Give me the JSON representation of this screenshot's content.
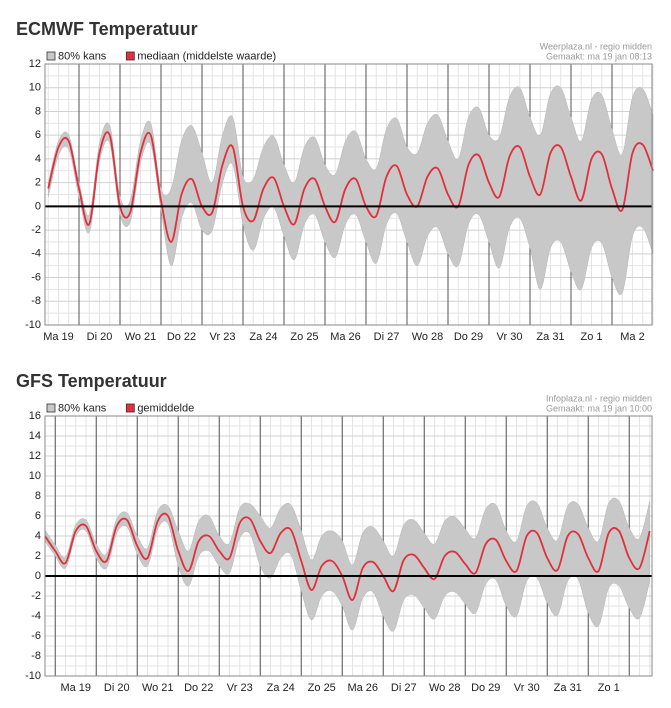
{
  "chart_data": [
    {
      "type": "line",
      "title": "ECMWF Temperatuur",
      "source": "Weerplaza.nl - regio midden",
      "created": "Gemaakt: ma 19 jan 08:13",
      "categories": [
        null,
        "Ma 19",
        null,
        null,
        null,
        "Di 20",
        null,
        null,
        null,
        "Wo 21",
        null,
        null,
        null,
        "Do 22",
        null,
        null,
        null,
        "Vr 23",
        null,
        null,
        null,
        "Za 24",
        null,
        null,
        null,
        "Zo 25",
        null,
        null,
        null,
        "Ma 26",
        null,
        null,
        null,
        "Di 27",
        null,
        null,
        null,
        "Wo 28",
        null,
        null,
        null,
        "Do 29",
        null,
        null,
        null,
        "Vr 30",
        null,
        null,
        null,
        "Za 31",
        null,
        null,
        null,
        "Zo 1",
        null,
        null,
        null,
        "Ma 2",
        null,
        null
      ],
      "series": [
        {
          "name": "80% kans",
          "color": "#c8c8c8",
          "low": [
            0.8,
            4.3,
            4.8,
            0.8,
            -2.2,
            3.8,
            5.3,
            -0.7,
            -1.3,
            3.7,
            5.2,
            -0.3,
            -5,
            -1,
            0.3,
            -2,
            -2,
            2,
            3.5,
            -1.5,
            -3.7,
            -1,
            -0.1,
            -2.5,
            -4.5,
            -1.5,
            -0.7,
            -3,
            -4.3,
            -1.5,
            -0.7,
            -3,
            -4.8,
            -1.5,
            -0.6,
            -3,
            -5,
            -2.5,
            -1.8,
            -4,
            -5,
            -1.5,
            -0.7,
            -3,
            -5.2,
            -1.8,
            -1,
            -3.5,
            -7,
            -3.5,
            -3,
            -5.5,
            -7,
            -3.5,
            -3.1,
            -6,
            -7.3,
            -2.5,
            -1.8,
            -4
          ],
          "high": [
            2.0,
            5.5,
            6.0,
            2.0,
            -0.7,
            5.3,
            6.8,
            0.8,
            0.5,
            5.5,
            7.0,
            1.5,
            1.5,
            5.5,
            6.8,
            4.5,
            2,
            6,
            7.5,
            2.5,
            2.3,
            5,
            5.9,
            3.5,
            2,
            5,
            5.8,
            3.5,
            2.7,
            5.5,
            6.3,
            4,
            3.2,
            6.5,
            7.4,
            5,
            4.5,
            7,
            7.7,
            5.5,
            4,
            7.5,
            8.3,
            6,
            5.8,
            9.2,
            10,
            7.5,
            6,
            9.5,
            10,
            7.5,
            5.5,
            9,
            9.4,
            6.5,
            4.4,
            9.2,
            9.9,
            7.7
          ]
        },
        {
          "name": "mediaan (middelste waarde)",
          "color": "#e0303c",
          "values": [
            1.5,
            5.0,
            5.5,
            1.5,
            -1.5,
            4.5,
            6.0,
            0,
            -0.5,
            4.5,
            6.0,
            0.5,
            -3,
            1.0,
            2.3,
            0,
            -0.5,
            3.5,
            5.0,
            0,
            -1.2,
            1.5,
            2.4,
            0,
            -1.5,
            1.5,
            2.3,
            0,
            -1.3,
            1.5,
            2.3,
            0,
            -0.8,
            2.5,
            3.4,
            1,
            0,
            2.5,
            3.2,
            1,
            0,
            3.5,
            4.3,
            2,
            0.8,
            4.2,
            5.0,
            2.5,
            1.0,
            4.5,
            5.0,
            2.5,
            0.5,
            4.0,
            4.4,
            1.5,
            -0.3,
            4.5,
            5.2,
            3
          ]
        }
      ],
      "ylim": [
        -10,
        12
      ],
      "yticks": [
        -10,
        -8,
        -6,
        -4,
        -2,
        0,
        2,
        4,
        6,
        8,
        10,
        12
      ],
      "grid": true
    },
    {
      "type": "line",
      "title": "GFS Temperatuur",
      "source": "Infoplaza.nl - regio midden",
      "created": "Gemaakt: ma 19 jan 10:00",
      "categories": [
        null,
        null,
        null,
        "Ma 19",
        null,
        null,
        null,
        "Di 20",
        null,
        null,
        null,
        "Wo 21",
        null,
        null,
        null,
        "Do 22",
        null,
        null,
        null,
        "Vr 23",
        null,
        null,
        null,
        "Za 24",
        null,
        null,
        null,
        "Zo 25",
        null,
        null,
        null,
        "Ma 26",
        null,
        null,
        null,
        "Di 27",
        null,
        null,
        null,
        "Wo 28",
        null,
        null,
        null,
        "Do 29",
        null,
        null,
        null,
        "Vr 30",
        null,
        null,
        null,
        "Za 31",
        null,
        null,
        null,
        "Zo 1",
        null,
        null,
        null,
        null
      ],
      "series": [
        {
          "name": "80% kans",
          "color": "#c8c8c8",
          "low": [
            3.5,
            2.0,
            0.8,
            4.0,
            4.5,
            1.8,
            0.8,
            4.3,
            4.9,
            2.2,
            1.0,
            4.7,
            5.2,
            1,
            -1,
            2,
            2.5,
            1,
            0.3,
            3.8,
            4.2,
            1,
            -0.2,
            1.8,
            2.1,
            -1.5,
            -4.4,
            -2,
            -1.5,
            -3,
            -5.4,
            -2.2,
            -1.6,
            -4,
            -5.5,
            -2.4,
            -1.9,
            -3.2,
            -4.3,
            -2,
            -1.6,
            -2.8,
            -3.7,
            -0.8,
            -0.4,
            -3,
            -4,
            -0.5,
            -0.2,
            -2.7,
            -3.9,
            -0.5,
            -0.3,
            -3.7,
            -5,
            -1.2,
            -1,
            -3.2,
            -4.2,
            -0.5
          ],
          "high": [
            4.6,
            3.1,
            1.9,
            5.1,
            5.6,
            3.2,
            2.2,
            5.7,
            6.3,
            4,
            2.8,
            6.5,
            7,
            4.5,
            2.5,
            5.5,
            6,
            4,
            3.3,
            6.8,
            7.2,
            6,
            4.8,
            6.8,
            7.1,
            4.5,
            1.6,
            4,
            4.5,
            3.5,
            1.1,
            4.3,
            4.9,
            3.5,
            2,
            5.1,
            5.6,
            4.3,
            3.2,
            5.5,
            5.9,
            4.7,
            3.8,
            6.7,
            7.1,
            4.5,
            3.5,
            7,
            7.3,
            4.8,
            3.6,
            7,
            7.2,
            4.8,
            3.5,
            7.3,
            7.5,
            4.8,
            3.8,
            7.5
          ]
        },
        {
          "name": "gemiddelde",
          "color": "#e0303c",
          "values": [
            4.0,
            2.5,
            1.3,
            4.5,
            5.0,
            2.5,
            1.5,
            5.0,
            5.6,
            3,
            1.8,
            5.5,
            6.0,
            2.5,
            0.5,
            3.5,
            4.0,
            2.5,
            1.8,
            5.3,
            5.7,
            3.5,
            2.3,
            4.3,
            4.6,
            1.5,
            -1.4,
            1.0,
            1.5,
            0,
            -2.4,
            0.8,
            1.4,
            0,
            -1.5,
            1.6,
            2.1,
            0.8,
            -0.3,
            2.0,
            2.4,
            1.2,
            0.3,
            3.2,
            3.6,
            1.5,
            0.5,
            4.0,
            4.3,
            1.8,
            0.6,
            4.0,
            4.2,
            1.8,
            0.5,
            4.3,
            4.5,
            1.8,
            0.8,
            4.5
          ]
        }
      ],
      "ylim": [
        -10,
        16
      ],
      "yticks": [
        -10,
        -8,
        -6,
        -4,
        -2,
        0,
        2,
        4,
        6,
        8,
        10,
        12,
        14,
        16
      ],
      "grid": true
    }
  ]
}
